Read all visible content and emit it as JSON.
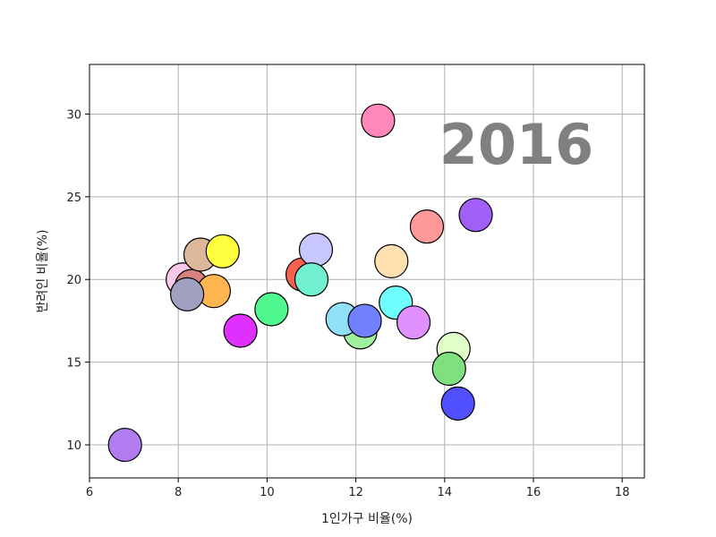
{
  "chart_data": {
    "type": "scatter",
    "xlabel": "1인가구 비율(%)",
    "ylabel": "반려인 비율(%)",
    "annotation": "2016",
    "xlim": [
      6,
      18.5
    ],
    "ylim": [
      8,
      33
    ],
    "x_ticks": [
      6,
      8,
      10,
      12,
      14,
      16,
      18
    ],
    "y_ticks": [
      10,
      15,
      20,
      25,
      30
    ],
    "grid": true,
    "points": [
      {
        "x": 6.8,
        "y": 10.0,
        "color": "#b07cf0"
      },
      {
        "x": 8.1,
        "y": 20.0,
        "color": "#f8c8e8"
      },
      {
        "x": 8.3,
        "y": 19.6,
        "color": "#d98080"
      },
      {
        "x": 8.8,
        "y": 19.3,
        "color": "#ffb650"
      },
      {
        "x": 8.5,
        "y": 21.5,
        "color": "#dcb89a"
      },
      {
        "x": 9.0,
        "y": 21.7,
        "color": "#ffff40"
      },
      {
        "x": 8.2,
        "y": 19.1,
        "color": "#a0a0c0"
      },
      {
        "x": 9.4,
        "y": 16.9,
        "color": "#e030ff"
      },
      {
        "x": 10.1,
        "y": 18.2,
        "color": "#50f890"
      },
      {
        "x": 10.8,
        "y": 20.3,
        "color": "#f86050"
      },
      {
        "x": 11.1,
        "y": 21.8,
        "color": "#c8c8ff"
      },
      {
        "x": 11.0,
        "y": 20.0,
        "color": "#70f0d0"
      },
      {
        "x": 12.1,
        "y": 16.8,
        "color": "#a0f0a0"
      },
      {
        "x": 11.7,
        "y": 17.6,
        "color": "#90e0f8"
      },
      {
        "x": 12.2,
        "y": 17.5,
        "color": "#7080ff"
      },
      {
        "x": 12.5,
        "y": 29.6,
        "color": "#ff88b8"
      },
      {
        "x": 12.8,
        "y": 21.1,
        "color": "#ffe0b0"
      },
      {
        "x": 12.9,
        "y": 18.6,
        "color": "#70ffff"
      },
      {
        "x": 13.3,
        "y": 17.4,
        "color": "#e090ff"
      },
      {
        "x": 13.6,
        "y": 23.2,
        "color": "#ff9898"
      },
      {
        "x": 14.7,
        "y": 23.9,
        "color": "#a060f8"
      },
      {
        "x": 14.2,
        "y": 15.8,
        "color": "#e0ffc8"
      },
      {
        "x": 14.1,
        "y": 14.6,
        "color": "#80e080"
      },
      {
        "x": 14.3,
        "y": 12.5,
        "color": "#5050ff"
      }
    ]
  }
}
